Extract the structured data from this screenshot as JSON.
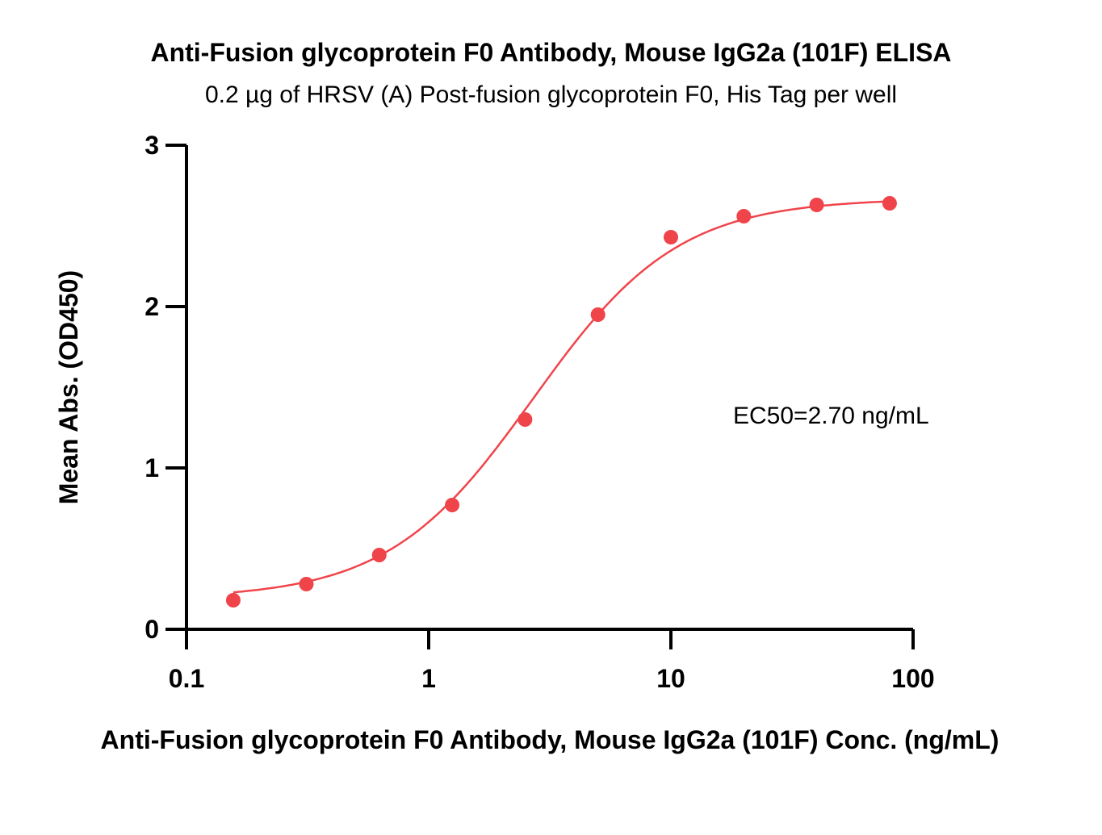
{
  "chart_data": {
    "type": "scatter",
    "title": "Anti-Fusion glycoprotein F0 Antibody, Mouse IgG2a (101F) ELISA",
    "subtitle": "0.2 µg of HRSV (A) Post-fusion glycoprotein F0, His Tag per well",
    "xlabel": "Anti-Fusion glycoprotein F0 Antibody, Mouse IgG2a (101F) Conc. (ng/mL)",
    "ylabel": "Mean Abs. (OD450)",
    "xscale": "log",
    "xlim": [
      0.1,
      100
    ],
    "ylim": [
      0,
      3
    ],
    "xticks": [
      "0.1",
      "1",
      "10",
      "100"
    ],
    "yticks": [
      "0",
      "1",
      "2",
      "3"
    ],
    "grid": false,
    "series": [
      {
        "x": [
          0.156,
          0.3125,
          0.625,
          1.25,
          2.5,
          5,
          10,
          20,
          40,
          80
        ],
        "y": [
          0.18,
          0.28,
          0.46,
          0.77,
          1.3,
          1.95,
          2.43,
          2.56,
          2.63,
          2.64
        ],
        "fit": "four-parameter logistic",
        "fit_params": {
          "bottom": 0.19,
          "top": 2.67,
          "ec50": 2.7,
          "hill": 1.45
        }
      }
    ],
    "annotations": [
      "EC50=2.70 ng/mL"
    ],
    "color": "#f0444b"
  }
}
